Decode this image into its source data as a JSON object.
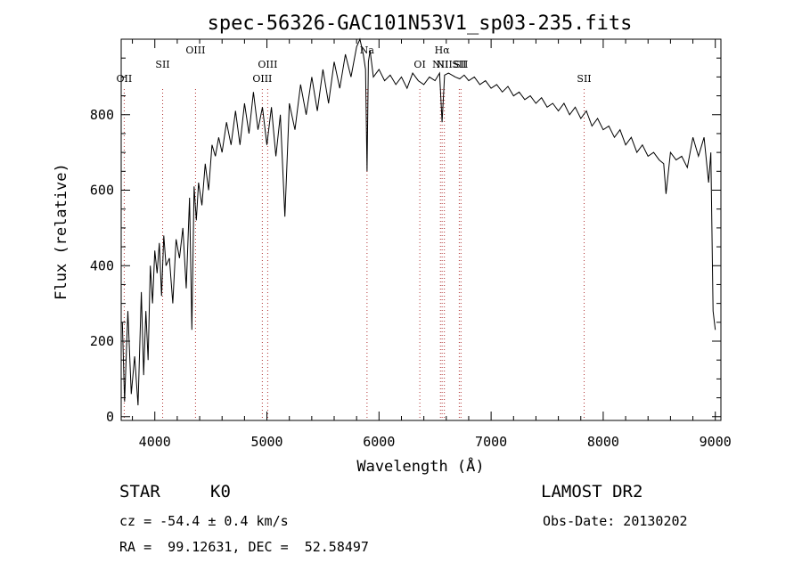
{
  "chart_data": {
    "type": "line",
    "title": "spec-56326-GAC101N53V1_sp03-235.fits",
    "xlabel": "Wavelength (Å)",
    "ylabel": "Flux (relative)",
    "xlim": [
      3700,
      9050
    ],
    "ylim": [
      -10,
      1000
    ],
    "xticks": [
      4000,
      5000,
      6000,
      7000,
      8000,
      9000
    ],
    "yticks": [
      0,
      200,
      400,
      600,
      800
    ],
    "grid": false,
    "line_markers": [
      {
        "label": "OII",
        "x": 3727
      },
      {
        "label": "SII",
        "x": 4070
      },
      {
        "label": "OIII",
        "x": 4363
      },
      {
        "label": "OIII",
        "x": 4959
      },
      {
        "label": "OIII",
        "x": 5007
      },
      {
        "label": "Na",
        "x": 5893
      },
      {
        "label": "OI",
        "x": 6364
      },
      {
        "label": "NII",
        "x": 6548
      },
      {
        "label": "Hα",
        "x": 6563
      },
      {
        "label": "NII",
        "x": 6583
      },
      {
        "label": "SII",
        "x": 6716
      },
      {
        "label": "SII",
        "x": 6731
      },
      {
        "label": "SII",
        "x": 7830
      }
    ],
    "series": [
      {
        "x": [
          3710,
          3730,
          3760,
          3790,
          3820,
          3850,
          3880,
          3900,
          3920,
          3940,
          3960,
          3980,
          4000,
          4020,
          4040,
          4060,
          4080,
          4100,
          4130,
          4160,
          4190,
          4220,
          4250,
          4280,
          4310,
          4330,
          4350,
          4370,
          4390,
          4420,
          4450,
          4480,
          4510,
          4540,
          4570,
          4600,
          4640,
          4680,
          4720,
          4760,
          4800,
          4840,
          4880,
          4920,
          4960,
          5000,
          5040,
          5080,
          5120,
          5160,
          5200,
          5250,
          5300,
          5350,
          5400,
          5450,
          5500,
          5550,
          5600,
          5650,
          5700,
          5750,
          5800,
          5830,
          5860,
          5880,
          5893,
          5905,
          5920,
          5950,
          6000,
          6050,
          6100,
          6150,
          6200,
          6250,
          6300,
          6350,
          6400,
          6450,
          6500,
          6540,
          6563,
          6585,
          6620,
          6680,
          6720,
          6760,
          6800,
          6850,
          6900,
          6950,
          7000,
          7050,
          7100,
          7150,
          7200,
          7250,
          7300,
          7350,
          7400,
          7450,
          7500,
          7550,
          7600,
          7650,
          7700,
          7750,
          7800,
          7850,
          7900,
          7950,
          8000,
          8050,
          8100,
          8150,
          8200,
          8250,
          8300,
          8350,
          8400,
          8450,
          8500,
          8540,
          8560,
          8600,
          8650,
          8700,
          8750,
          8800,
          8850,
          8900,
          8940,
          8960,
          8980,
          9000
        ],
        "values": [
          250,
          40,
          280,
          60,
          160,
          30,
          330,
          110,
          280,
          150,
          400,
          300,
          440,
          380,
          460,
          320,
          480,
          400,
          420,
          300,
          470,
          420,
          500,
          340,
          580,
          230,
          610,
          520,
          620,
          560,
          670,
          600,
          720,
          690,
          740,
          700,
          780,
          720,
          810,
          720,
          830,
          750,
          860,
          760,
          820,
          720,
          820,
          690,
          800,
          530,
          830,
          760,
          880,
          800,
          900,
          810,
          920,
          830,
          940,
          870,
          960,
          900,
          980,
          1000,
          960,
          920,
          650,
          940,
          970,
          900,
          920,
          890,
          905,
          880,
          900,
          870,
          910,
          890,
          880,
          900,
          890,
          910,
          780,
          905,
          910,
          900,
          895,
          905,
          890,
          900,
          880,
          890,
          870,
          880,
          860,
          875,
          850,
          860,
          840,
          850,
          830,
          845,
          820,
          830,
          810,
          830,
          800,
          820,
          790,
          810,
          770,
          790,
          760,
          770,
          740,
          760,
          720,
          740,
          700,
          720,
          690,
          700,
          680,
          670,
          590,
          700,
          680,
          690,
          660,
          740,
          690,
          740,
          620,
          700,
          280,
          230
        ]
      }
    ],
    "object_type": "STAR",
    "spectral_class": "K0",
    "survey": "LAMOST DR2",
    "cz_text": "cz = -54.4 ± 0.4 km/s",
    "obs_date_text": "Obs-Date: 20130202",
    "radec_text": "RA =  99.12631, DEC =  52.58497"
  }
}
